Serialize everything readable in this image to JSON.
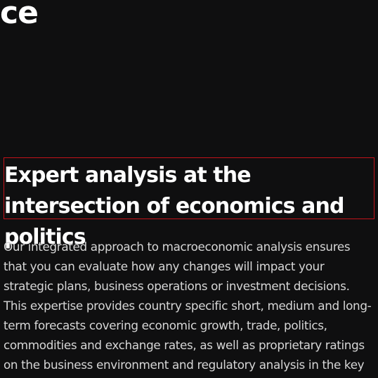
{
  "hero": {
    "title_fragment": "ce"
  },
  "section": {
    "headline": "Expert analysis at the intersection of economics and politics",
    "body": "Our integrated approach to macroeconomic analysis ensures that you can evaluate how any changes will impact your strategic plans, business operations or investment decisions. This expertise provides country specific short, medium and long-term forecasts covering economic growth, trade, politics, commodities and exchange rates, as well as proprietary ratings on the business environment and regulatory analysis in the key markets for doing business."
  },
  "colors": {
    "background": "#0f0f10",
    "text": "#ffffff",
    "body_text": "#d6d6d6",
    "highlight_border": "#c3121a"
  }
}
